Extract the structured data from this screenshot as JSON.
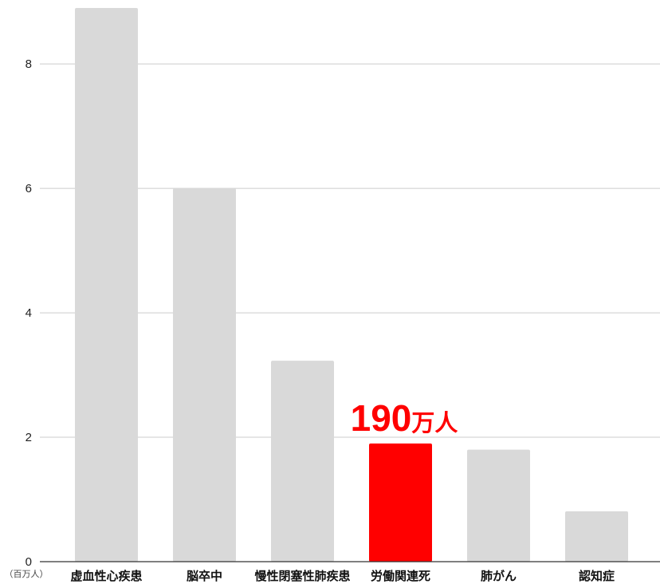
{
  "chart_data": {
    "type": "bar",
    "categories": [
      "虚血性心疾患",
      "脳卒中",
      "慢性閉塞性肺疾患",
      "労働関連死",
      "肺がん",
      "認知症"
    ],
    "values": [
      8.9,
      6.0,
      3.23,
      1.9,
      1.8,
      0.81
    ],
    "highlight_index": 3,
    "ylim": [
      0,
      8.9
    ],
    "yticks": [
      0,
      2,
      4,
      6,
      8
    ],
    "y_unit_label": "（百万人）",
    "grid": true,
    "annotation": {
      "number": "190",
      "unit": "万人"
    },
    "colors": {
      "bar": "#d9d9d9",
      "highlight": "#ff0000",
      "grid": "#cccccc",
      "axis": "#333333"
    }
  }
}
